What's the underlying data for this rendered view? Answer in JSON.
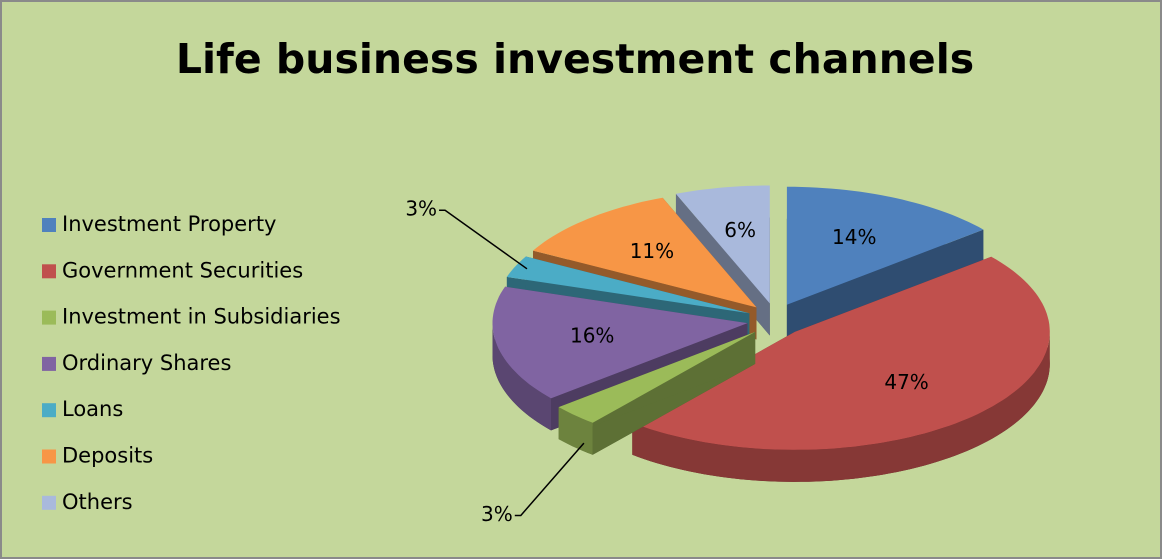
{
  "chart_data": {
    "type": "pie",
    "title": "Life business investment channels",
    "categories": [
      "Investment Property",
      "Government Securities",
      "Investment in Subsidiaries",
      "Ordinary Shares",
      "Loans",
      "Deposits",
      "Others"
    ],
    "values": [
      14,
      47,
      3,
      16,
      3,
      11,
      6
    ],
    "value_labels": [
      "14%",
      "47%",
      "3%",
      "16%",
      "3%",
      "11%",
      "6%"
    ],
    "colors": [
      "#4f81bd",
      "#c0504d",
      "#9bbb59",
      "#8064a2",
      "#4bacc6",
      "#f79646",
      "#a9b9dc"
    ],
    "legend": "left"
  }
}
